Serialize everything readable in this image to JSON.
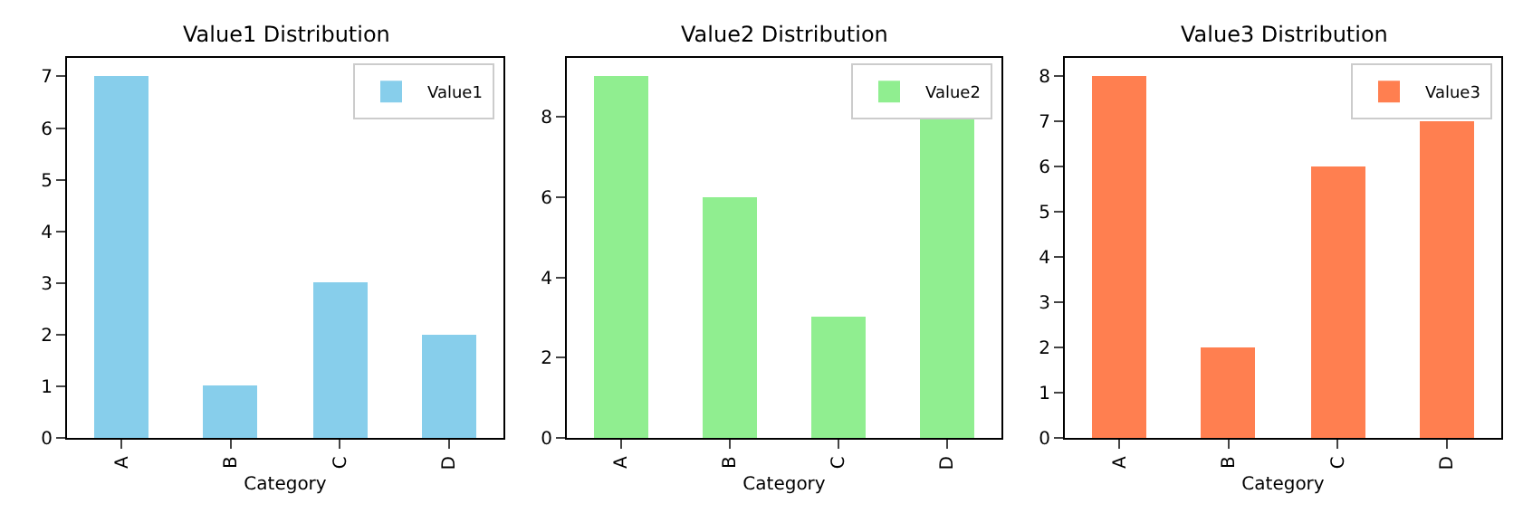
{
  "chart_data": [
    {
      "type": "bar",
      "title": "Value1 Distribution",
      "xlabel": "Category",
      "categories": [
        "A",
        "B",
        "C",
        "D"
      ],
      "series": [
        {
          "name": "Value1",
          "color": "#87ceeb",
          "values": [
            7,
            1,
            3,
            2
          ]
        }
      ],
      "ylim": [
        0,
        7.35
      ],
      "yticks": [
        0,
        1,
        2,
        3,
        4,
        5,
        6,
        7
      ],
      "legend": "top right"
    },
    {
      "type": "bar",
      "title": "Value2 Distribution",
      "xlabel": "Category",
      "categories": [
        "A",
        "B",
        "C",
        "D"
      ],
      "series": [
        {
          "name": "Value2",
          "color": "#90ee90",
          "values": [
            9,
            6,
            3,
            8
          ]
        }
      ],
      "ylim": [
        0,
        9.45
      ],
      "yticks": [
        0,
        2,
        4,
        6,
        8
      ],
      "legend": "top right"
    },
    {
      "type": "bar",
      "title": "Value3 Distribution",
      "xlabel": "Category",
      "categories": [
        "A",
        "B",
        "C",
        "D"
      ],
      "series": [
        {
          "name": "Value3",
          "color": "#ff7f50",
          "values": [
            8,
            2,
            6,
            7
          ]
        }
      ],
      "ylim": [
        0,
        8.4
      ],
      "yticks": [
        0,
        1,
        2,
        3,
        4,
        5,
        6,
        7,
        8
      ],
      "legend": "top right"
    }
  ]
}
